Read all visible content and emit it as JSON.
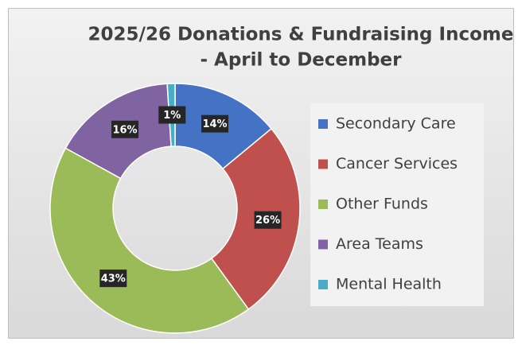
{
  "chart_data": {
    "type": "doughnut",
    "title": [
      "2025/26 Donations & Fundraising Income",
      "- April to December"
    ],
    "categories": [
      "Secondary Care",
      "Cancer Services",
      "Other Funds",
      "Area Teams",
      "Mental Health"
    ],
    "values": [
      14,
      26,
      43,
      16,
      1
    ],
    "value_labels": [
      "14%",
      "26%",
      "43%",
      "16%",
      "1%"
    ],
    "colors": [
      "#4472c4",
      "#c0504d",
      "#9bbb59",
      "#8064a2",
      "#4bacc6"
    ],
    "legend": "right"
  }
}
